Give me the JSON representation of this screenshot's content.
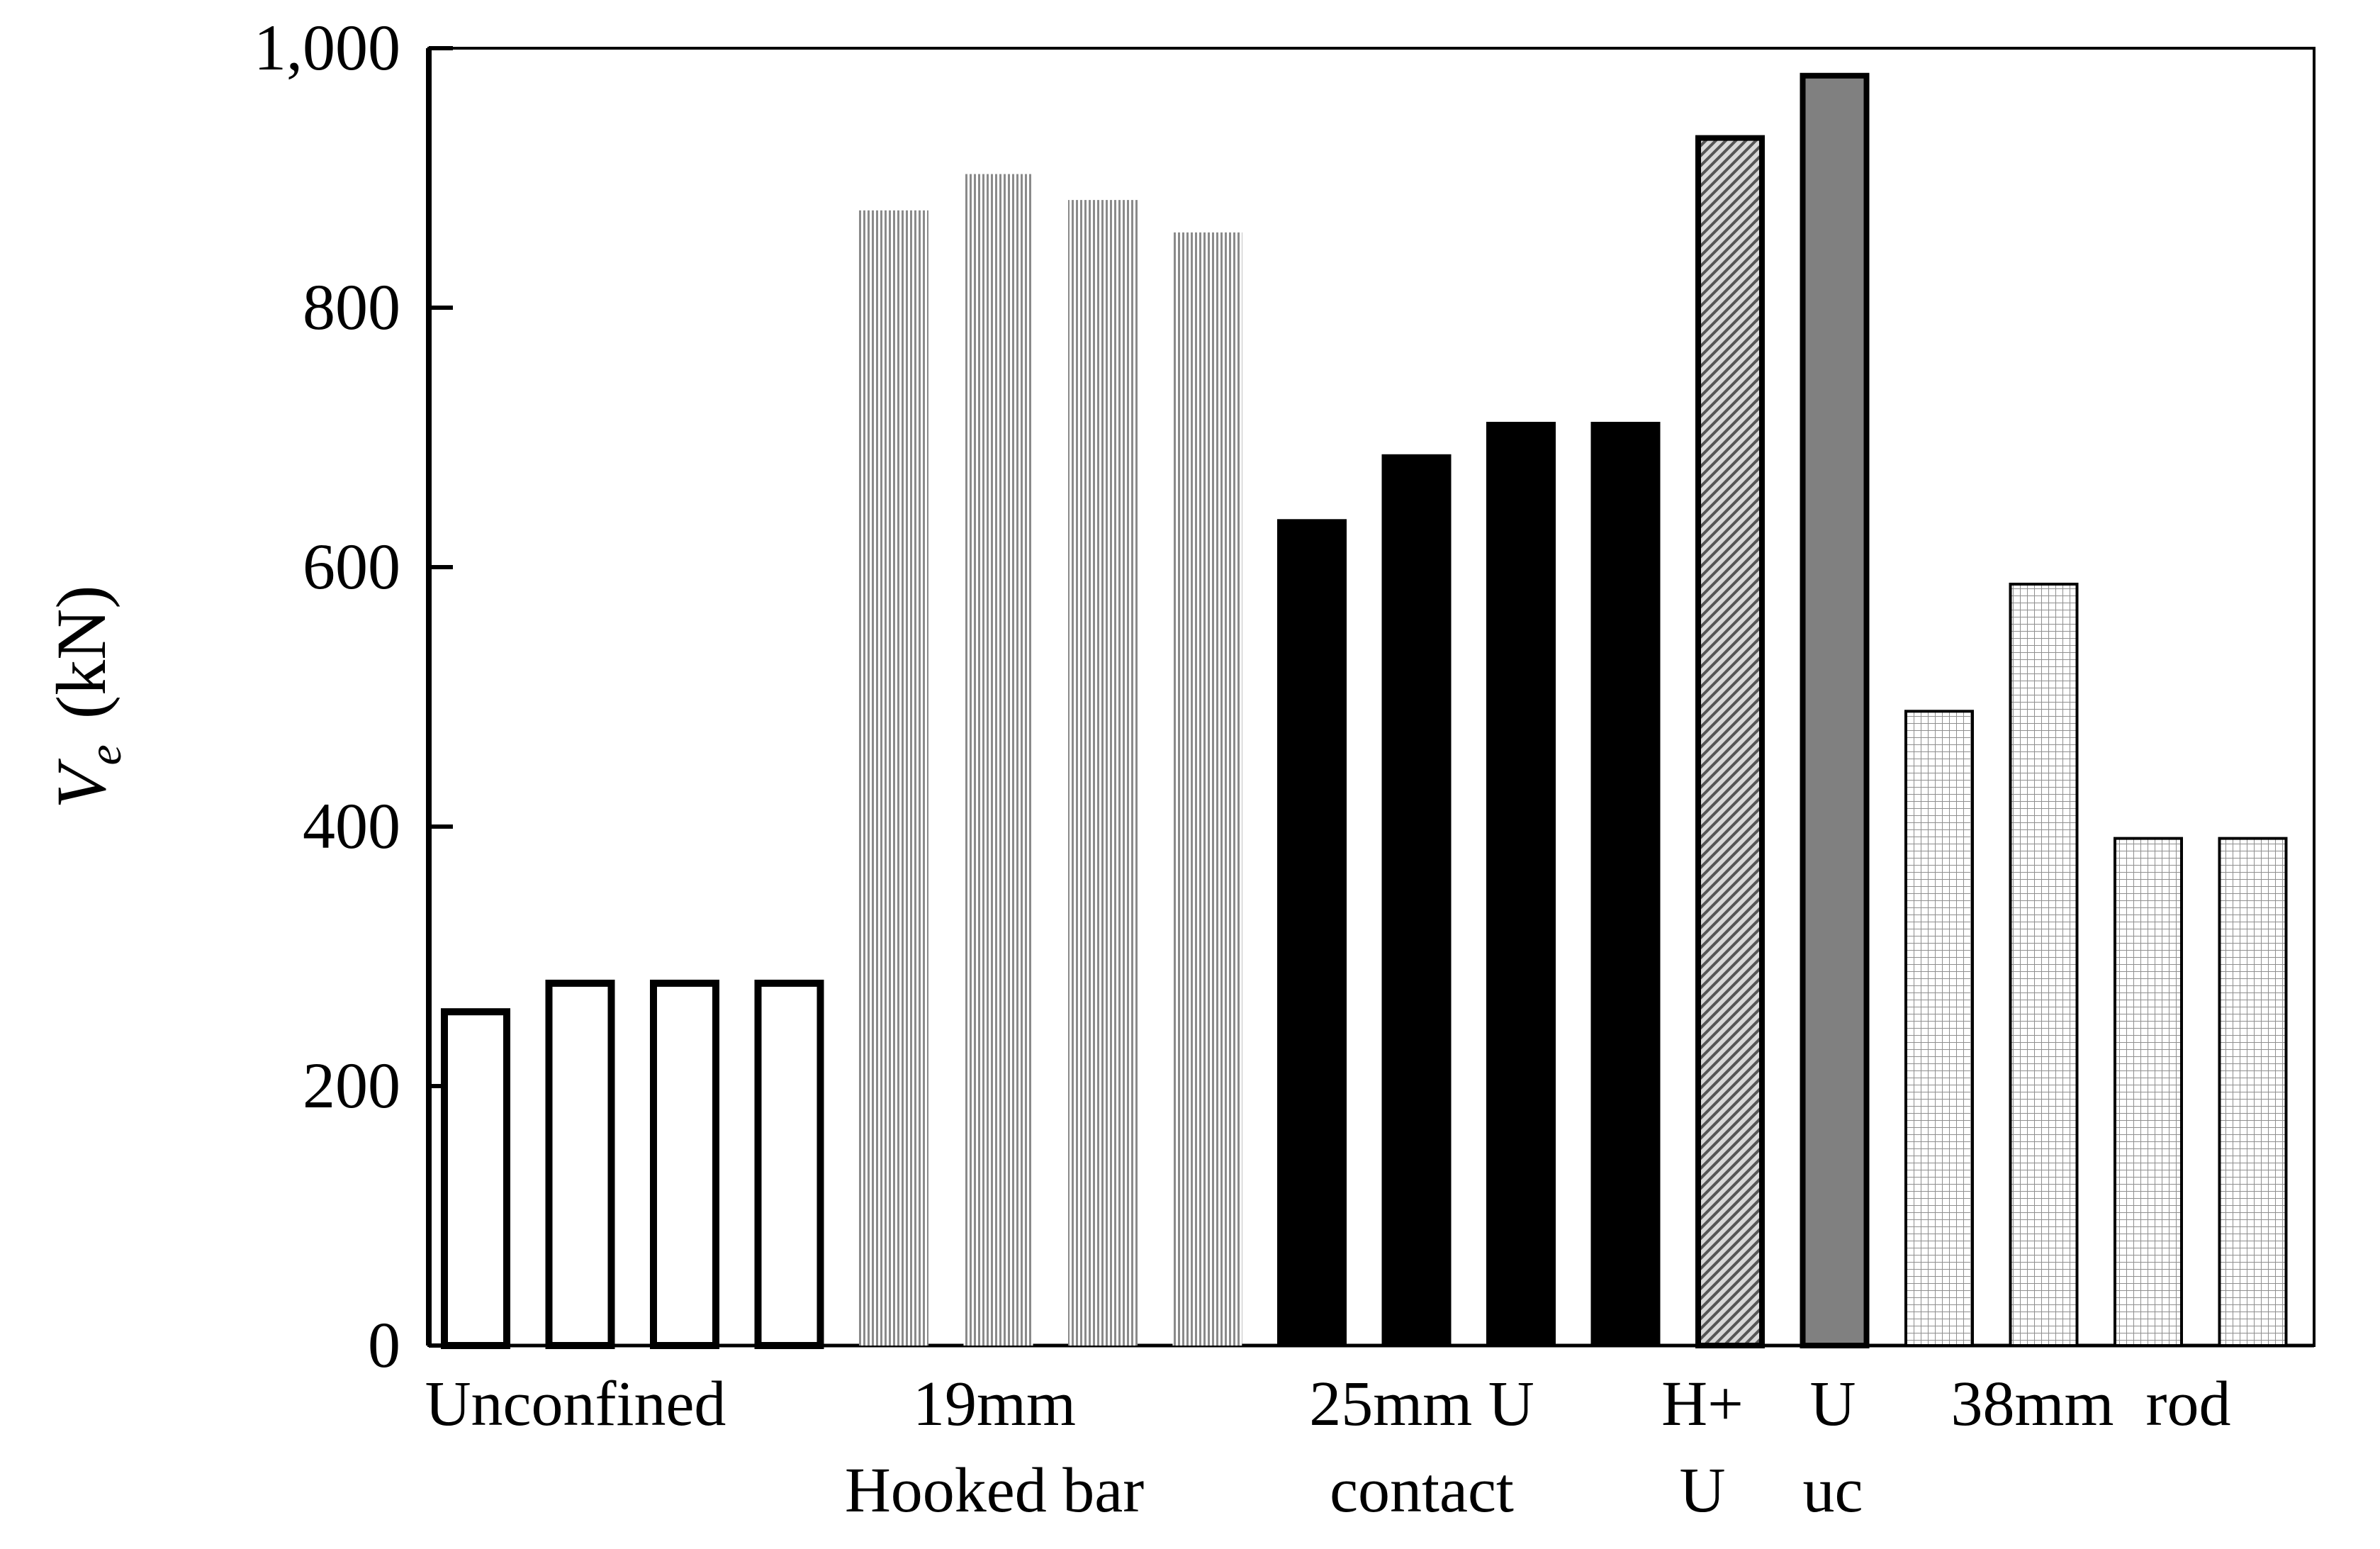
{
  "chart_data": {
    "type": "bar",
    "ylabel": {
      "symbol": "V",
      "subscript": "e",
      "unit": "(kN)"
    },
    "xlabel": "",
    "ylim": [
      0,
      1000
    ],
    "yticks": [
      "0",
      "200",
      "400",
      "600",
      "800",
      "1,000"
    ],
    "grid": false,
    "groups": [
      {
        "label_lines": [
          "Unconfined"
        ],
        "style": "outline",
        "values": [
          260,
          282,
          282,
          282
        ]
      },
      {
        "label_lines": [
          "19mm",
          "Hooked bar"
        ],
        "style": "vertical-hatch",
        "values": [
          875,
          903,
          883,
          858
        ]
      },
      {
        "label_lines": [
          "25mm U",
          "contact"
        ],
        "style": "solid-black",
        "values": [
          637,
          687,
          712,
          712
        ]
      },
      {
        "label_lines": [
          "H+",
          "U"
        ],
        "style": "diagonal-hatch",
        "values": [
          933
        ]
      },
      {
        "label_lines": [
          "U",
          "uc"
        ],
        "style": "solid-gray",
        "values": [
          981
        ]
      },
      {
        "label_lines": [
          "38mm  rod"
        ],
        "style": "grid-hatch",
        "values": [
          490,
          588,
          392,
          392
        ]
      }
    ],
    "colors": {
      "axis": "#000000",
      "solid_gray": "#808080",
      "hatch_gray": "#9a9a9a"
    }
  }
}
